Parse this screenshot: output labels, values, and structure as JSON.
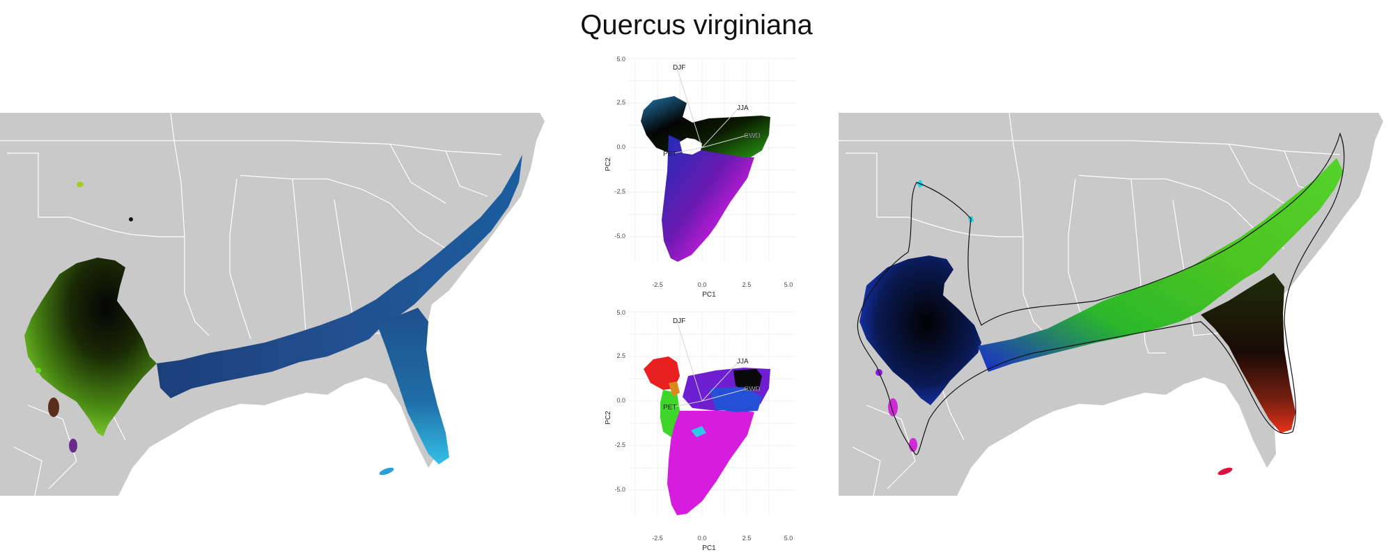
{
  "title": "Quercus virginiana",
  "colors": {
    "land": "#c9c9c9",
    "border": "#ffffff",
    "background": "#ffffff"
  },
  "pca_top": {
    "x_label": "PC1",
    "y_label": "PC2",
    "x_ticks": [
      "-2.5",
      "0.0",
      "2.5",
      "5.0"
    ],
    "y_ticks": [
      "5.0",
      "2.5",
      "0.0",
      "-2.5",
      "-5.0"
    ],
    "vectors": [
      "DJF",
      "JJA",
      "CWD",
      "PET"
    ]
  },
  "pca_bottom": {
    "x_label": "PC1",
    "y_label": "PC2",
    "x_ticks": [
      "-2.5",
      "0.0",
      "2.5",
      "5.0"
    ],
    "y_ticks": [
      "5.0",
      "2.5",
      "0.0",
      "-2.5",
      "-5.0"
    ],
    "vectors": [
      "DJF",
      "JJA",
      "CWD",
      "PET"
    ]
  },
  "chart_data": [
    {
      "type": "scatter",
      "xlabel": "PC1",
      "ylabel": "PC2",
      "xlim": [
        -3.5,
        5.2
      ],
      "ylim": [
        -6.5,
        5.2
      ],
      "x_ticks": [
        -2.5,
        0.0,
        2.5,
        5.0
      ],
      "y_ticks": [
        5.0,
        2.5,
        0.0,
        -2.5,
        -5.0
      ],
      "grid": true,
      "arrows": [
        {
          "label": "DJF",
          "x": -1.3,
          "y": 4.3
        },
        {
          "label": "JJA",
          "x": 2.0,
          "y": 2.0
        },
        {
          "label": "CWD",
          "x": 2.8,
          "y": 0.6
        },
        {
          "label": "PET",
          "x": -2.3,
          "y": -0.3
        }
      ]
    },
    {
      "type": "scatter",
      "xlabel": "PC1",
      "ylabel": "PC2",
      "xlim": [
        -3.5,
        5.2
      ],
      "ylim": [
        -6.5,
        5.2
      ],
      "x_ticks": [
        -2.5,
        0.0,
        2.5,
        5.0
      ],
      "y_ticks": [
        5.0,
        2.5,
        0.0,
        -2.5,
        -5.0
      ],
      "grid": true,
      "arrows": [
        {
          "label": "DJF",
          "x": -1.3,
          "y": 4.3
        },
        {
          "label": "JJA",
          "x": 2.0,
          "y": 2.0
        },
        {
          "label": "CWD",
          "x": 2.8,
          "y": 0.6
        },
        {
          "label": "PET",
          "x": -2.3,
          "y": -0.3
        }
      ]
    }
  ]
}
